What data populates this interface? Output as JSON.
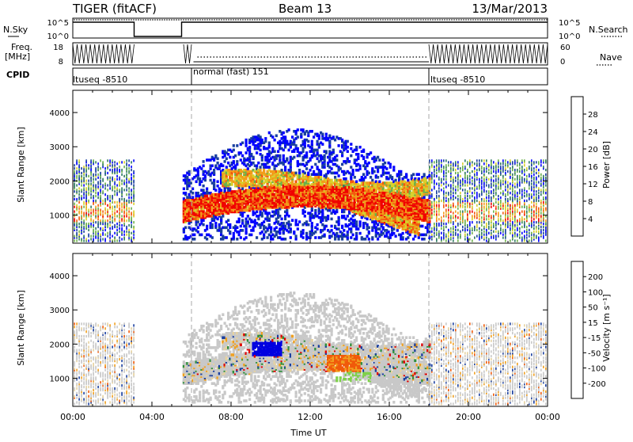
{
  "header": {
    "station": "TIGER (fitACF)",
    "beam": "Beam 13",
    "date": "13/Mar/2013"
  },
  "status": {
    "nsky_label": "N.Sky",
    "nsearch_label": "N.Search",
    "freq_label_1": "Freq.",
    "freq_label_2": "[MHz]",
    "nave_label": "Nave",
    "cpid_label": "CPID",
    "nsky_ticks": [
      "10^5",
      "10^0"
    ],
    "nsearch_ticks": [
      "10^5",
      "10^0"
    ],
    "freq_ticks": [
      "18",
      "8"
    ],
    "nave_ticks": [
      "60",
      "0"
    ],
    "cpid_segments": [
      {
        "label": "ltuseq -8510",
        "start": 0,
        "end": 6
      },
      {
        "label": "normal (fast) 151",
        "start": 6,
        "end": 18
      },
      {
        "label": "ltuseq -8510",
        "start": 18,
        "end": 24
      }
    ],
    "gap": [
      3.1,
      5.5
    ]
  },
  "chart_data": [
    {
      "type": "heatmap",
      "name": "power",
      "ylabel": "Slant Range [km]",
      "yticks": [
        1000,
        2000,
        3000,
        4000
      ],
      "ylim": [
        180,
        4650
      ],
      "xlim": [
        0,
        24
      ],
      "colorbar_label": "Power [dB]",
      "colorbar_ticks": [
        "4",
        "8",
        "12",
        "16",
        "20",
        "24",
        "28"
      ],
      "colors": [
        "#0000ff",
        "#1a3fa0",
        "#2f7a62",
        "#6bb04a",
        "#d7d02b",
        "#f29d1a",
        "#f25a0e",
        "#f00000"
      ]
    },
    {
      "type": "heatmap",
      "name": "velocity",
      "ylabel": "Slant Range [km]",
      "yticks": [
        1000,
        2000,
        3000,
        4000
      ],
      "ylim": [
        180,
        4650
      ],
      "xlim": [
        0,
        24
      ],
      "xlabel": "Time UT",
      "xticks": [
        "00:00",
        "04:00",
        "08:00",
        "12:00",
        "16:00",
        "20:00",
        "00:00"
      ],
      "colorbar_label": "Velocity [m s⁻¹]",
      "colorbar_ticks": [
        "-200",
        "-100",
        "-50",
        "-15",
        "15",
        "50",
        "100",
        "200"
      ],
      "colors": [
        "#e00000",
        "#f05a0a",
        "#f0a020",
        "#e6d2a0",
        "#c8c8c8",
        "#7ed04a",
        "#2f8f3c",
        "#1a3fa0",
        "#0000e0"
      ]
    }
  ]
}
